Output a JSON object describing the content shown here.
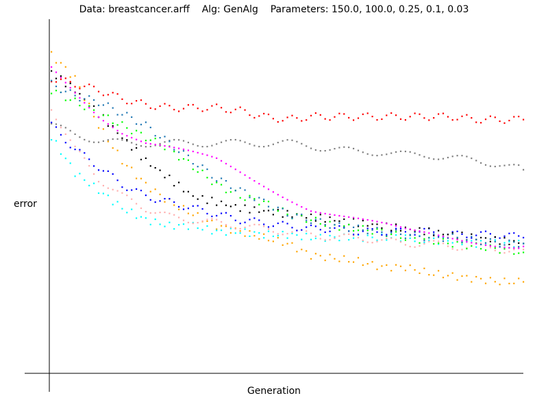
{
  "chart_data": {
    "type": "scatter",
    "title": "Data: breastcancer.arff    Alg: GenAlg    Parameters: 150.0, 100.0, 0.25, 0.1, 0.03",
    "xlabel": "Generation",
    "ylabel": "error",
    "grid": false,
    "legend": "none",
    "series": [
      {
        "color": "#ff0000",
        "x": [
          0,
          5,
          10,
          15,
          20,
          25,
          30,
          35,
          40,
          45,
          50,
          55,
          60,
          65,
          70,
          75,
          80,
          85,
          90,
          95,
          100
        ],
        "y": [
          0.6,
          0.59,
          0.58,
          0.565,
          0.555,
          0.55,
          0.55,
          0.55,
          0.545,
          0.535,
          0.53,
          0.535,
          0.535,
          0.535,
          0.535,
          0.535,
          0.535,
          0.535,
          0.53,
          0.53,
          0.53
        ]
      },
      {
        "color": "#808080",
        "x": [
          0,
          5,
          10,
          15,
          20,
          25,
          30,
          35,
          40,
          45,
          50,
          55,
          60,
          65,
          70,
          75,
          80,
          85,
          90,
          95,
          100
        ],
        "y": [
          0.52,
          0.505,
          0.495,
          0.49,
          0.49,
          0.49,
          0.49,
          0.49,
          0.49,
          0.49,
          0.49,
          0.485,
          0.48,
          0.475,
          0.475,
          0.47,
          0.47,
          0.465,
          0.46,
          0.455,
          0.445
        ]
      },
      {
        "color": "#ffa500",
        "x": [
          0,
          5,
          10,
          15,
          20,
          25,
          30,
          35,
          40,
          45,
          50,
          55,
          60,
          65,
          70,
          75,
          80,
          85,
          90,
          95,
          100
        ],
        "y": [
          0.64,
          0.6,
          0.52,
          0.46,
          0.42,
          0.39,
          0.37,
          0.35,
          0.34,
          0.33,
          0.32,
          0.3,
          0.295,
          0.29,
          0.28,
          0.28,
          0.27,
          0.265,
          0.26,
          0.255,
          0.255
        ]
      },
      {
        "color": "#00ffff",
        "x": [
          0,
          5,
          10,
          15,
          20,
          25,
          30,
          35,
          40,
          45,
          50,
          55,
          60,
          65,
          70,
          75,
          80,
          85,
          90,
          95,
          100
        ],
        "y": [
          0.5,
          0.44,
          0.41,
          0.38,
          0.36,
          0.35,
          0.35,
          0.34,
          0.34,
          0.335,
          0.335,
          0.33,
          0.33,
          0.33,
          0.33,
          0.33,
          0.325,
          0.325,
          0.32,
          0.32,
          0.32
        ]
      },
      {
        "color": "#ffafaf",
        "x": [
          0,
          5,
          10,
          15,
          20,
          25,
          30,
          35,
          40,
          45,
          50,
          55,
          60,
          65,
          70,
          75,
          80,
          85,
          90,
          95,
          100
        ],
        "y": [
          0.55,
          0.48,
          0.43,
          0.4,
          0.38,
          0.365,
          0.36,
          0.355,
          0.35,
          0.345,
          0.34,
          0.335,
          0.33,
          0.33,
          0.325,
          0.32,
          0.32,
          0.315,
          0.315,
          0.31,
          0.31
        ]
      },
      {
        "color": "#0000ff",
        "x": [
          0,
          5,
          10,
          15,
          20,
          25,
          30,
          35,
          40,
          45,
          50,
          55,
          60,
          65,
          70,
          75,
          80,
          85,
          90,
          95,
          100
        ],
        "y": [
          0.52,
          0.48,
          0.45,
          0.42,
          0.4,
          0.39,
          0.38,
          0.37,
          0.36,
          0.355,
          0.35,
          0.345,
          0.345,
          0.34,
          0.34,
          0.34,
          0.34,
          0.335,
          0.335,
          0.335,
          0.33
        ]
      },
      {
        "color": "#000000",
        "x": [
          0,
          5,
          10,
          15,
          20,
          25,
          30,
          35,
          40,
          45,
          50,
          55,
          60,
          65,
          70,
          75,
          80,
          85,
          90,
          95,
          100
        ],
        "y": [
          0.61,
          0.58,
          0.54,
          0.5,
          0.46,
          0.43,
          0.4,
          0.39,
          0.38,
          0.375,
          0.37,
          0.365,
          0.36,
          0.355,
          0.35,
          0.345,
          0.34,
          0.335,
          0.33,
          0.325,
          0.32
        ]
      },
      {
        "color": "#00ff00",
        "x": [
          0,
          5,
          10,
          15,
          20,
          25,
          30,
          35,
          40,
          45,
          50,
          55,
          60,
          65,
          70,
          75,
          80,
          85,
          90,
          95,
          100
        ],
        "y": [
          0.58,
          0.56,
          0.54,
          0.52,
          0.5,
          0.48,
          0.45,
          0.42,
          0.4,
          0.39,
          0.37,
          0.36,
          0.35,
          0.345,
          0.34,
          0.33,
          0.325,
          0.32,
          0.315,
          0.31,
          0.305
        ]
      },
      {
        "color": "#ff00ff",
        "x": [
          0,
          5,
          10,
          15,
          20,
          25,
          30,
          35,
          40,
          45,
          50,
          55,
          60,
          65,
          70,
          75,
          80,
          85,
          90,
          95,
          100
        ],
        "y": [
          0.62,
          0.58,
          0.54,
          0.51,
          0.49,
          0.48,
          0.47,
          0.46,
          0.44,
          0.42,
          0.4,
          0.38,
          0.37,
          0.36,
          0.35,
          0.34,
          0.335,
          0.33,
          0.325,
          0.32,
          0.315
        ]
      },
      {
        "color": "#1f77b4",
        "x": [
          0,
          5,
          10,
          15,
          20,
          25,
          30,
          35,
          40,
          45,
          50,
          55,
          60,
          65,
          70,
          75,
          80,
          85,
          90,
          95,
          100
        ],
        "y": [
          0.59,
          0.57,
          0.56,
          0.54,
          0.52,
          0.49,
          0.46,
          0.43,
          0.41,
          0.39,
          0.37,
          0.36,
          0.35,
          0.345,
          0.34,
          0.335,
          0.33,
          0.33,
          0.325,
          0.32,
          0.32
        ]
      }
    ],
    "xlim": [
      0,
      100
    ],
    "ylim": [
      0.1,
      0.7
    ]
  }
}
